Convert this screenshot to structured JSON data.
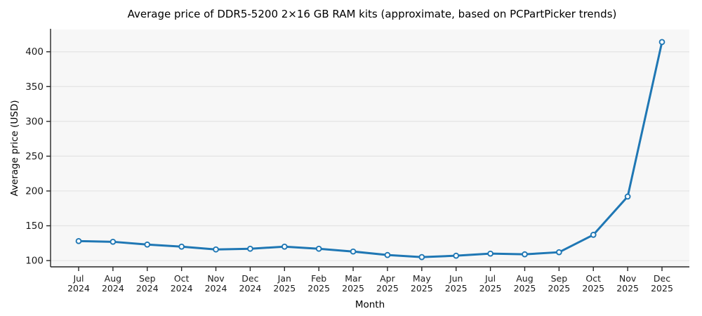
{
  "chart_data": {
    "type": "line",
    "title": "Average price of DDR5-5200 2×16 GB RAM kits (approximate, based on PCPartPicker trends)",
    "xlabel": "Month",
    "ylabel": "Average price (USD)",
    "categories": [
      "Jul 2024",
      "Aug 2024",
      "Sep 2024",
      "Oct 2024",
      "Nov 2024",
      "Dec 2024",
      "Jan 2025",
      "Feb 2025",
      "Mar 2025",
      "Apr 2025",
      "May 2025",
      "Jun 2025",
      "Jul 2025",
      "Aug 2025",
      "Sep 2025",
      "Oct 2025",
      "Nov 2025",
      "Dec 2025"
    ],
    "series": [
      {
        "name": "Average price (USD)",
        "values": [
          128,
          127,
          123,
          120,
          116,
          117,
          120,
          117,
          113,
          108,
          105,
          107,
          110,
          109,
          112,
          137,
          192,
          414
        ]
      }
    ],
    "yticks": [
      100,
      150,
      200,
      250,
      300,
      350,
      400
    ],
    "ylim": [
      91,
      432
    ],
    "grid": "horizontal-only",
    "legend_position": "none",
    "marker_style": "open-circle",
    "colors": {
      "line": "#1f77b4",
      "marker_fill": "#ffffff",
      "plot_background": "#f7f7f7",
      "grid_line": "#e4e4e4",
      "spine": "#262626",
      "tick_label": "#1a1a1a"
    }
  }
}
